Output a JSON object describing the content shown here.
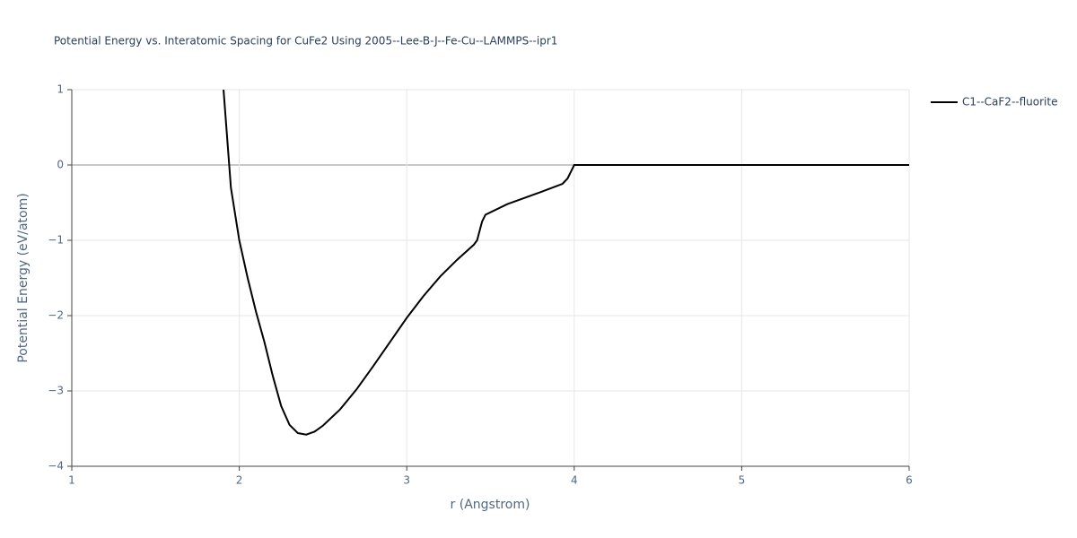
{
  "chart_data": {
    "type": "line",
    "title": "Potential Energy vs. Interatomic Spacing for CuFe2 Using 2005--Lee-B-J--Fe-Cu--LAMMPS--ipr1",
    "x_label": "r (Angstrom)",
    "y_label": "Potential Energy (eV/atom)",
    "x": [
      1.906,
      1.95,
      2.0,
      2.05,
      2.1,
      2.15,
      2.2,
      2.25,
      2.3,
      2.35,
      2.4,
      2.45,
      2.5,
      2.6,
      2.7,
      2.8,
      2.9,
      3.0,
      3.1,
      3.2,
      3.3,
      3.4,
      3.42,
      3.45,
      3.47,
      3.6,
      3.8,
      3.93,
      3.96,
      4.0,
      6.0
    ],
    "series": [
      {
        "name": "C1--CaF2--fluorite",
        "color": "#000000",
        "values": [
          1,
          -0.3,
          -1.0,
          -1.5,
          -1.95,
          -2.35,
          -2.8,
          -3.2,
          -3.45,
          -3.56,
          -3.58,
          -3.54,
          -3.46,
          -3.25,
          -2.98,
          -2.67,
          -2.35,
          -2.03,
          -1.74,
          -1.48,
          -1.26,
          -1.06,
          -1.0,
          -0.75,
          -0.66,
          -0.52,
          -0.36,
          -0.25,
          -0.18,
          0,
          0
        ]
      }
    ],
    "xlim": [
      1,
      6
    ],
    "ylim": [
      -4,
      1
    ],
    "xticks": [
      1,
      2,
      3,
      4,
      5,
      6
    ],
    "yticks": [
      {
        "value": -4,
        "label": "−4"
      },
      {
        "value": -3,
        "label": "−3"
      },
      {
        "value": -2,
        "label": "−2"
      },
      {
        "value": -1,
        "label": "−1"
      },
      0,
      1
    ],
    "grid": true,
    "legend": "right"
  }
}
